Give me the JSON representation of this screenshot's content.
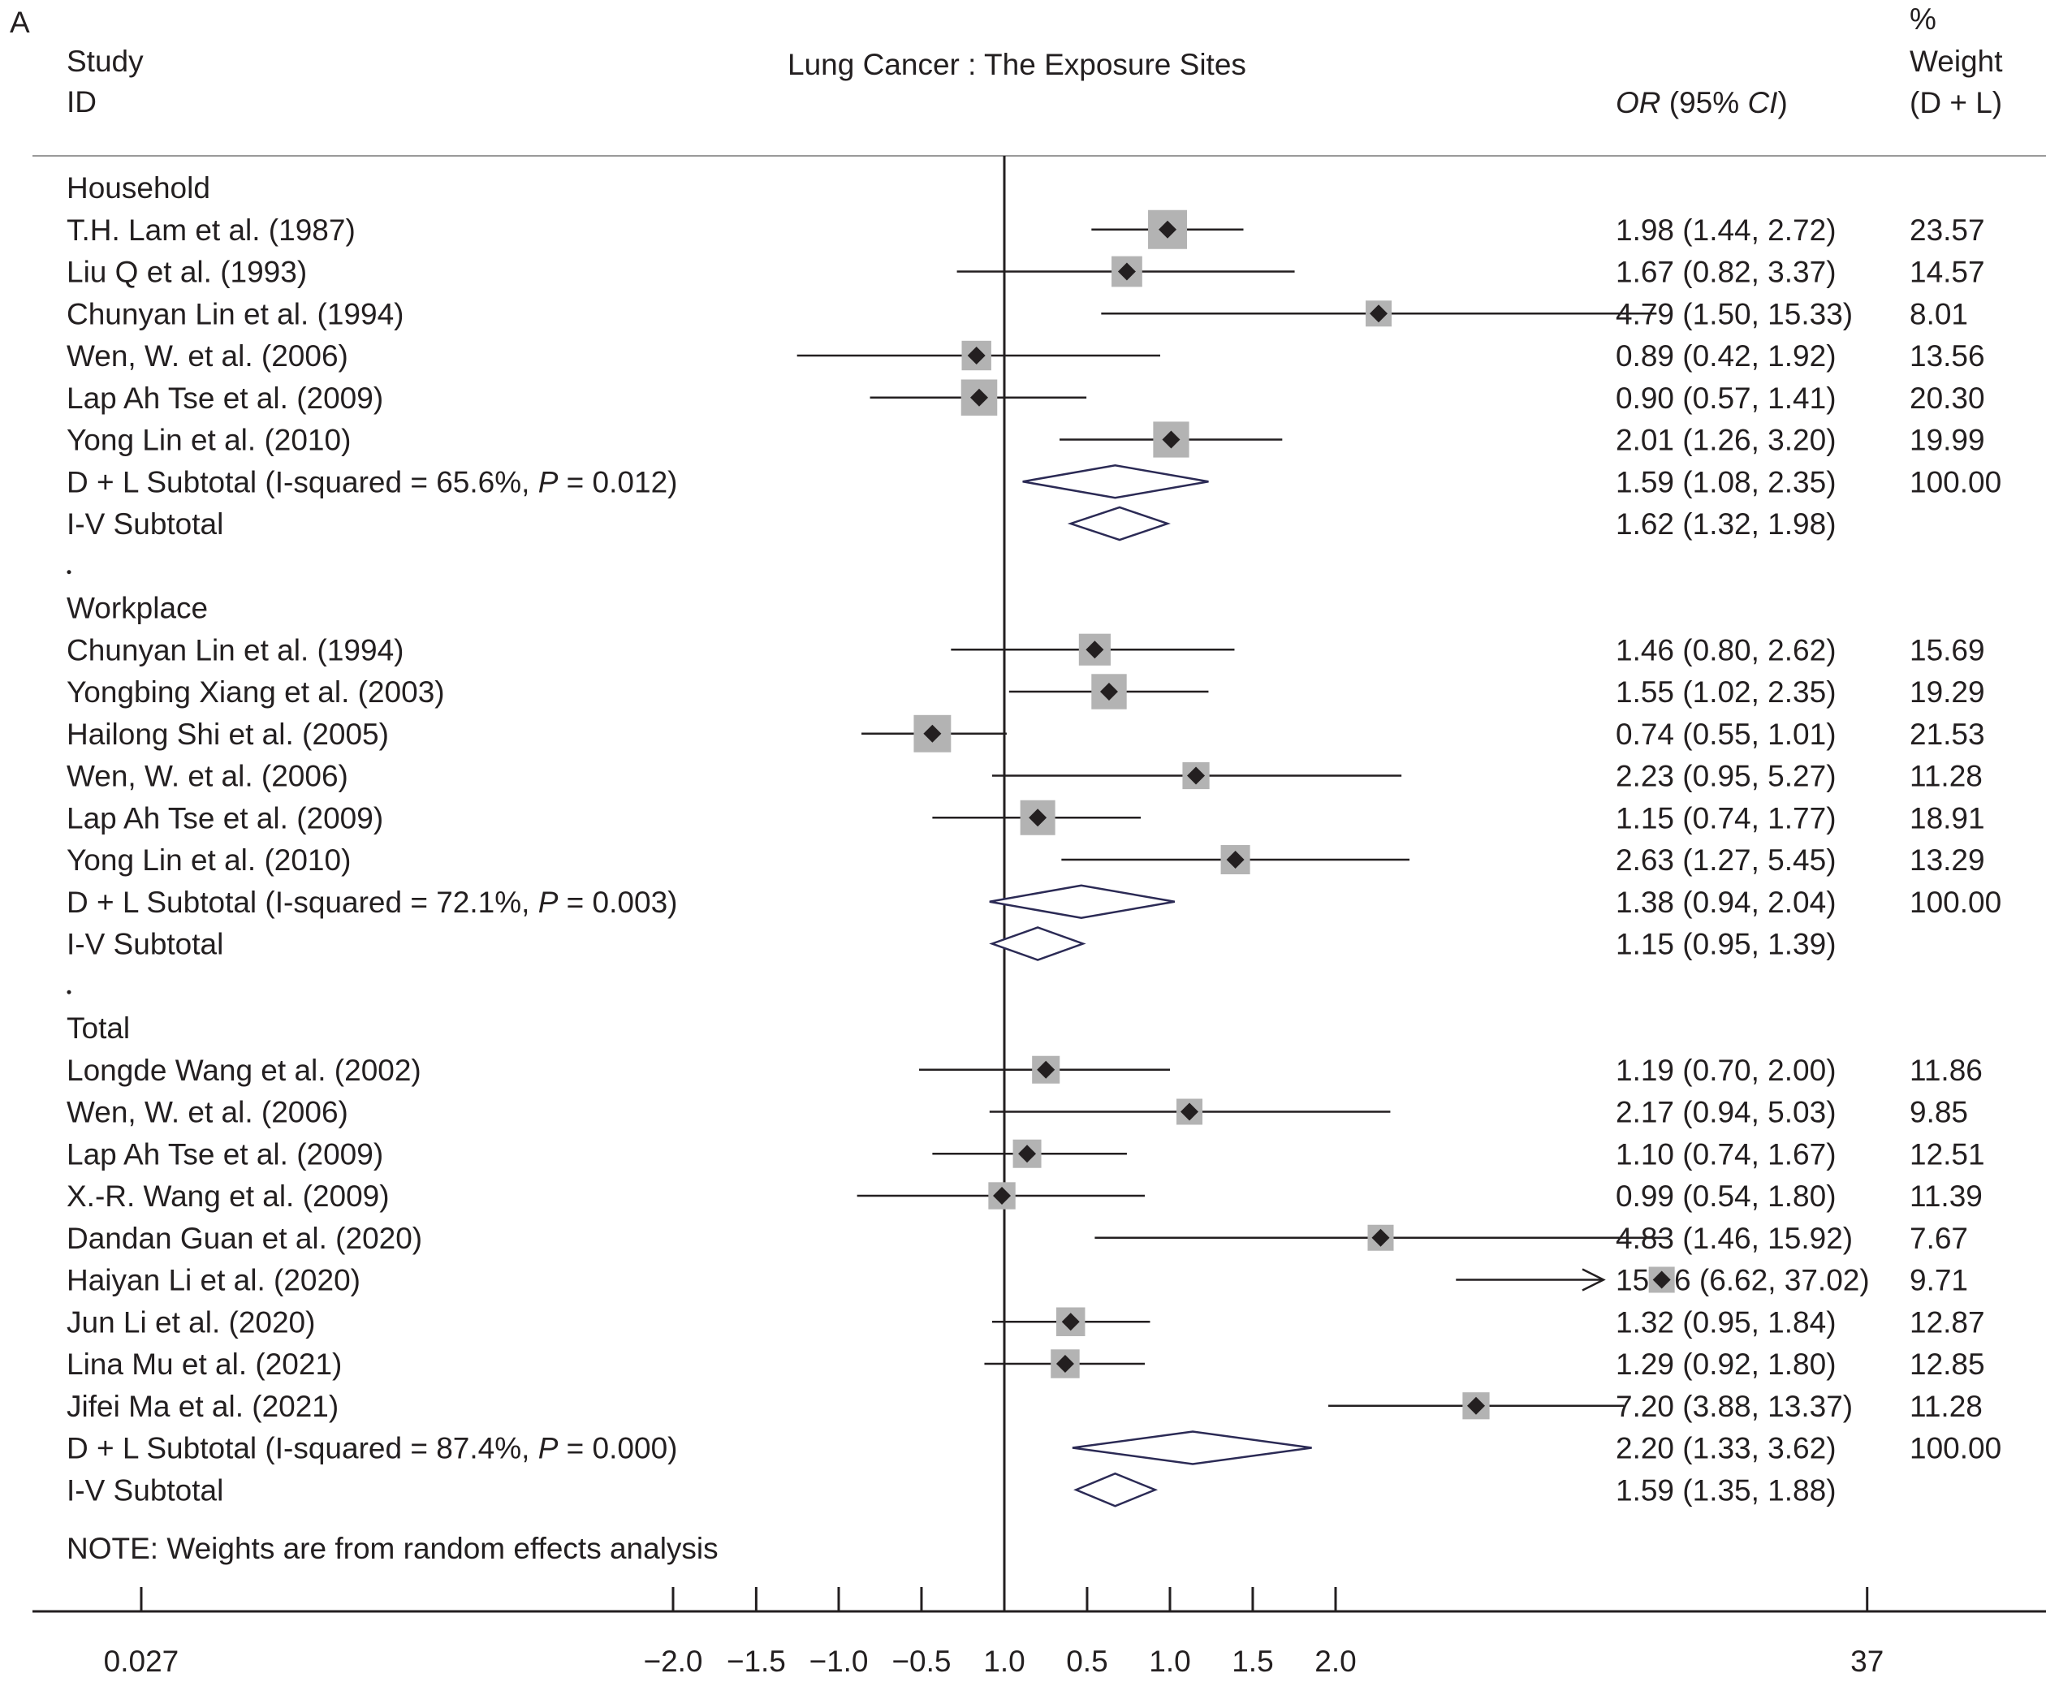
{
  "panel_label": "A",
  "headers": {
    "study_line1": "Study",
    "study_line2": "ID",
    "title": "Lung Cancer : The Exposure Sites",
    "or_label_italic": "OR",
    "ci_label_open": " (95% ",
    "ci_label_italic": "CI",
    "ci_label_close": ")",
    "weight_line1": "%",
    "weight_line2": "Weight",
    "weight_line3": "(D + L)"
  },
  "note": "NOTE: Weights are from random effects analysis",
  "colors": {
    "text": "#231f20",
    "weight_box": "#b3b3b3",
    "point": "#231f20",
    "diamond": "#2b2a55",
    "axis": "#231f20"
  },
  "chart_data": {
    "type": "forest",
    "title": "Lung Cancer : The Exposure Sites",
    "effect_measure": "OR (95% CI)",
    "null_value": 1.0,
    "axis_tick_labels": [
      "0.027",
      "−2.0",
      "−1.5",
      "−1.0",
      "−0.5",
      "1.0",
      "0.5",
      "1.0",
      "1.5",
      "2.0",
      "37"
    ],
    "axis_tick_values": [
      0.027,
      0.25,
      0.354,
      0.5,
      0.707,
      1.0,
      1.414,
      2.0,
      2.828,
      4.0,
      37
    ],
    "groups": [
      {
        "name": "Household",
        "studies": [
          {
            "label": "T.H. Lam et al. (1987)",
            "or": 1.98,
            "lo": 1.44,
            "hi": 2.72,
            "or_text": "1.98 (1.44, 2.72)",
            "weight_text": "23.57"
          },
          {
            "label": "Liu Q et al. (1993)",
            "or": 1.67,
            "lo": 0.82,
            "hi": 3.37,
            "or_text": "1.67 (0.82, 3.37)",
            "weight_text": "14.57"
          },
          {
            "label": "Chunyan Lin et al. (1994)",
            "or": 4.79,
            "lo": 1.5,
            "hi": 15.33,
            "or_text": "4.79 (1.50, 15.33)",
            "weight_text": "8.01"
          },
          {
            "label": "Wen, W. et al. (2006)",
            "or": 0.89,
            "lo": 0.42,
            "hi": 1.92,
            "or_text": "0.89 (0.42, 1.92)",
            "weight_text": "13.56"
          },
          {
            "label": "Lap Ah Tse et al. (2009)",
            "or": 0.9,
            "lo": 0.57,
            "hi": 1.41,
            "or_text": "0.90 (0.57, 1.41)",
            "weight_text": "20.30"
          },
          {
            "label": "Yong Lin et al. (2010)",
            "or": 2.01,
            "lo": 1.26,
            "hi": 3.2,
            "or_text": "2.01 (1.26, 3.20)",
            "weight_text": "19.99"
          }
        ],
        "dl": {
          "prefix": "D + L Subtotal  (I-squared = 65.6%, ",
          "p_label": "P",
          "suffix": " = 0.012)",
          "or": 1.59,
          "lo": 1.08,
          "hi": 2.35,
          "or_text": "1.59 (1.08, 2.35)",
          "weight_text": "100.00"
        },
        "iv": {
          "label": "I-V Subtotal",
          "or": 1.62,
          "lo": 1.32,
          "hi": 1.98,
          "or_text": "1.62 (1.32, 1.98)"
        }
      },
      {
        "name": "Workplace",
        "studies": [
          {
            "label": "Chunyan Lin et al. (1994)",
            "or": 1.46,
            "lo": 0.8,
            "hi": 2.62,
            "or_text": "1.46 (0.80, 2.62)",
            "weight_text": "15.69"
          },
          {
            "label": "Yongbing Xiang et al. (2003)",
            "or": 1.55,
            "lo": 1.02,
            "hi": 2.35,
            "or_text": "1.55 (1.02, 2.35)",
            "weight_text": "19.29"
          },
          {
            "label": "Hailong Shi et al. (2005)",
            "or": 0.74,
            "lo": 0.55,
            "hi": 1.01,
            "or_text": "0.74 (0.55, 1.01)",
            "weight_text": "21.53"
          },
          {
            "label": "Wen, W. et al. (2006)",
            "or": 2.23,
            "lo": 0.95,
            "hi": 5.27,
            "or_text": "2.23 (0.95, 5.27)",
            "weight_text": "11.28"
          },
          {
            "label": "Lap Ah Tse et al. (2009)",
            "or": 1.15,
            "lo": 0.74,
            "hi": 1.77,
            "or_text": "1.15 (0.74, 1.77)",
            "weight_text": "18.91"
          },
          {
            "label": "Yong Lin et al. (2010)",
            "or": 2.63,
            "lo": 1.27,
            "hi": 5.45,
            "or_text": "2.63 (1.27, 5.45)",
            "weight_text": "13.29"
          }
        ],
        "dl": {
          "prefix": "D + L Subtotal  (I-squared = 72.1%, ",
          "p_label": "P",
          "suffix": " = 0.003)",
          "or": 1.38,
          "lo": 0.94,
          "hi": 2.04,
          "or_text": "1.38 (0.94, 2.04)",
          "weight_text": "100.00"
        },
        "iv": {
          "label": "I-V Subtotal",
          "or": 1.15,
          "lo": 0.95,
          "hi": 1.39,
          "or_text": "1.15 (0.95, 1.39)"
        }
      },
      {
        "name": "Total",
        "studies": [
          {
            "label": "Longde Wang et al. (2002)",
            "or": 1.19,
            "lo": 0.7,
            "hi": 2.0,
            "or_text": "1.19 (0.70, 2.00)",
            "weight_text": "11.86"
          },
          {
            "label": "Wen, W. et al. (2006)",
            "or": 2.17,
            "lo": 0.94,
            "hi": 5.03,
            "or_text": "2.17 (0.94, 5.03)",
            "weight_text": "9.85"
          },
          {
            "label": "Lap Ah Tse et al. (2009)",
            "or": 1.1,
            "lo": 0.74,
            "hi": 1.67,
            "or_text": "1.10 (0.74, 1.67)",
            "weight_text": "12.51"
          },
          {
            "label": "X.-R. Wang et al. (2009)",
            "or": 0.99,
            "lo": 0.54,
            "hi": 1.8,
            "or_text": "0.99 (0.54, 1.80)",
            "weight_text": "11.39"
          },
          {
            "label": "Dandan Guan et al. (2020)",
            "or": 4.83,
            "lo": 1.46,
            "hi": 15.92,
            "or_text": "4.83 (1.46, 15.92)",
            "weight_text": "7.67"
          },
          {
            "label": "Haiyan Li et al. (2020)",
            "or": 15.66,
            "lo": 6.62,
            "hi": 37.02,
            "or_text": "15.66 (6.62, 37.02)",
            "weight_text": "9.71",
            "arrow": true
          },
          {
            "label": "Jun Li et al. (2020)",
            "or": 1.32,
            "lo": 0.95,
            "hi": 1.84,
            "or_text": "1.32 (0.95, 1.84)",
            "weight_text": "12.87"
          },
          {
            "label": "Lina Mu et al. (2021)",
            "or": 1.29,
            "lo": 0.92,
            "hi": 1.8,
            "or_text": "1.29 (0.92, 1.80)",
            "weight_text": "12.85"
          },
          {
            "label": "Jifei Ma et al. (2021)",
            "or": 7.2,
            "lo": 3.88,
            "hi": 13.37,
            "or_text": "7.20 (3.88, 13.37)",
            "weight_text": "11.28"
          }
        ],
        "dl": {
          "prefix": "D + L Subtotal  (I-squared = 87.4%, ",
          "p_label": "P",
          "suffix": " = 0.000)",
          "or": 2.2,
          "lo": 1.33,
          "hi": 3.62,
          "or_text": "2.20 (1.33, 3.62)",
          "weight_text": "100.00"
        },
        "iv": {
          "label": "I-V Subtotal",
          "or": 1.59,
          "lo": 1.35,
          "hi": 1.88,
          "or_text": "1.59 (1.35, 1.88)"
        }
      }
    ]
  }
}
